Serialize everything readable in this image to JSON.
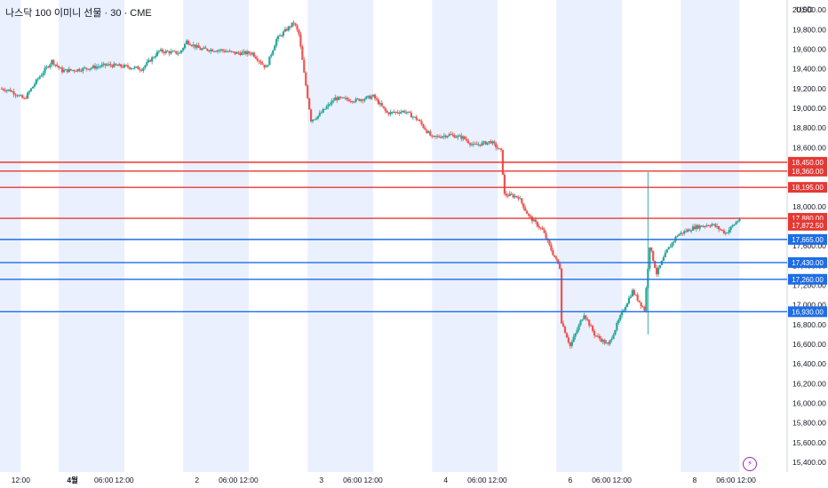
{
  "chart_data": {
    "type": "candlestick",
    "title": "나스닥 100 이미니 선물 · 30 · CME",
    "currency": "USD",
    "ylim": [
      15300,
      20100
    ],
    "y_ticks": [
      15400,
      15600,
      15800,
      16000,
      16200,
      16400,
      16600,
      16800,
      17000,
      17200,
      17400,
      17600,
      17800,
      18000,
      18200,
      18400,
      18600,
      18800,
      19000,
      19200,
      19400,
      19600,
      19800,
      20000
    ],
    "y_tick_labels": [
      "15,400.00",
      "15,600.00",
      "15,800.00",
      "16,000.00",
      "16,200.00",
      "16,400.00",
      "16,600.00",
      "16,800.00",
      "17,000.00",
      "17,200.00",
      "17,400.00",
      "17,600.00",
      "17,800.00",
      "18,000.00",
      "18,200.00",
      "18,400.00",
      "18,600.00",
      "18,800.00",
      "19,000.00",
      "19,200.00",
      "19,400.00",
      "19,600.00",
      "19,800.00",
      "20,000.00"
    ],
    "x_ticks": [
      "12:00",
      "4월",
      "06:00",
      "12:00",
      "2",
      "06:00",
      "12:00",
      "3",
      "06:00",
      "12:00",
      "4",
      "06:00",
      "12:00",
      "6",
      "06:00",
      "12:00",
      "8",
      "06:00",
      "12:00"
    ],
    "x_ticks_bold": [
      "4월"
    ],
    "x_range_hours": [
      0,
      218
    ],
    "x_tick_hours": [
      6,
      21,
      30,
      36,
      57,
      66,
      72,
      93,
      102,
      108,
      129,
      138,
      144,
      165,
      174,
      180,
      201,
      210,
      216
    ],
    "shaded_sessions": [
      [
        0,
        6
      ],
      [
        17,
        36
      ],
      [
        53,
        72
      ],
      [
        89,
        108
      ],
      [
        125,
        144
      ],
      [
        161,
        180
      ],
      [
        197,
        214
      ]
    ],
    "candle_interval_hours": 0.5,
    "price_path": [
      [
        0,
        19200
      ],
      [
        3,
        19180
      ],
      [
        7,
        19090
      ],
      [
        11,
        19300
      ],
      [
        15,
        19480
      ],
      [
        18,
        19380
      ],
      [
        22,
        19390
      ],
      [
        26,
        19410
      ],
      [
        31,
        19440
      ],
      [
        37,
        19420
      ],
      [
        41,
        19400
      ],
      [
        46,
        19580
      ],
      [
        52,
        19560
      ],
      [
        54,
        19680
      ],
      [
        58,
        19600
      ],
      [
        64,
        19590
      ],
      [
        68,
        19560
      ],
      [
        73,
        19560
      ],
      [
        77,
        19410
      ],
      [
        80,
        19700
      ],
      [
        85,
        19870
      ],
      [
        86.5,
        19750
      ],
      [
        88,
        19350
      ],
      [
        90,
        18880
      ],
      [
        92,
        18920
      ],
      [
        97,
        19100
      ],
      [
        103,
        19080
      ],
      [
        108,
        19120
      ],
      [
        112,
        18950
      ],
      [
        117,
        18970
      ],
      [
        121,
        18880
      ],
      [
        125,
        18700
      ],
      [
        130,
        18730
      ],
      [
        134,
        18700
      ],
      [
        137,
        18620
      ],
      [
        142,
        18660
      ],
      [
        145,
        18560
      ],
      [
        146,
        18120
      ],
      [
        150,
        18100
      ],
      [
        153,
        17900
      ],
      [
        157,
        17760
      ],
      [
        160,
        17520
      ],
      [
        162,
        17380
      ],
      [
        162.5,
        16830
      ],
      [
        165,
        16580
      ],
      [
        169,
        16910
      ],
      [
        172,
        16700
      ],
      [
        176,
        16590
      ],
      [
        180,
        16920
      ],
      [
        183,
        17140
      ],
      [
        186.5,
        16950
      ],
      [
        188,
        17600
      ],
      [
        190,
        17320
      ],
      [
        193,
        17550
      ],
      [
        196,
        17710
      ],
      [
        201,
        17790
      ],
      [
        206,
        17820
      ],
      [
        210,
        17730
      ],
      [
        214,
        17875
      ]
    ],
    "spikes": [
      [
        187.5,
        18350,
        16700
      ]
    ],
    "horizontal_lines": [
      {
        "value": 18450,
        "label": "18,450.00",
        "color": "#e53935"
      },
      {
        "value": 18360,
        "label": "18,360.00",
        "color": "#e53935"
      },
      {
        "value": 18195,
        "label": "18,195.00",
        "color": "#e53935"
      },
      {
        "value": 17880,
        "label": "17,880.00",
        "color": "#e53935"
      },
      {
        "value": 17665,
        "label": "17,665.00",
        "color": "#1e6de6"
      },
      {
        "value": 17430,
        "label": "17,430.00",
        "color": "#1e6de6"
      },
      {
        "value": 17260,
        "label": "17,260.00",
        "color": "#1e6de6"
      },
      {
        "value": 16930,
        "label": "16,930.00",
        "color": "#1e6de6"
      }
    ],
    "last_price": {
      "value": 17872.5,
      "label": "17,872.50",
      "color": "#e53935"
    },
    "colors": {
      "up": "#26a69a",
      "down": "#ef5350",
      "session_shade": "#eaf0fd"
    }
  },
  "header": {
    "title": "나스닥 100 이미니 선물 · 30 · CME"
  },
  "axis": {
    "currency": "USD"
  },
  "flash_icon": "lightning-bolt-icon"
}
